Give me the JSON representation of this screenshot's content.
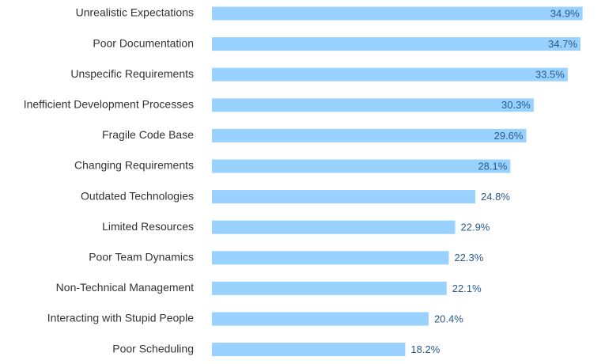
{
  "chart_data": {
    "type": "bar",
    "orientation": "horizontal",
    "categories": [
      "Unrealistic Expectations",
      "Poor Documentation",
      "Unspecific Requirements",
      "Inefficient Development Processes",
      "Fragile Code Base",
      "Changing Requirements",
      "Outdated Technologies",
      "Limited Resources",
      "Poor Team Dynamics",
      "Non-Technical Management",
      "Interacting with Stupid People",
      "Poor Scheduling"
    ],
    "values": [
      34.9,
      34.7,
      33.5,
      30.3,
      29.6,
      28.1,
      24.8,
      22.9,
      22.3,
      22.1,
      20.4,
      18.2
    ],
    "value_labels": [
      "34.9%",
      "34.7%",
      "33.5%",
      "30.3%",
      "29.6%",
      "28.1%",
      "24.8%",
      "22.9%",
      "22.3%",
      "22.1%",
      "20.4%",
      "18.2%"
    ],
    "unit": "%",
    "xlim": [
      0,
      35
    ],
    "grid": false,
    "legend": "none",
    "bar_color": "#99d1ff",
    "label_color": "#333333",
    "value_label_color": "#2a5a8c"
  }
}
